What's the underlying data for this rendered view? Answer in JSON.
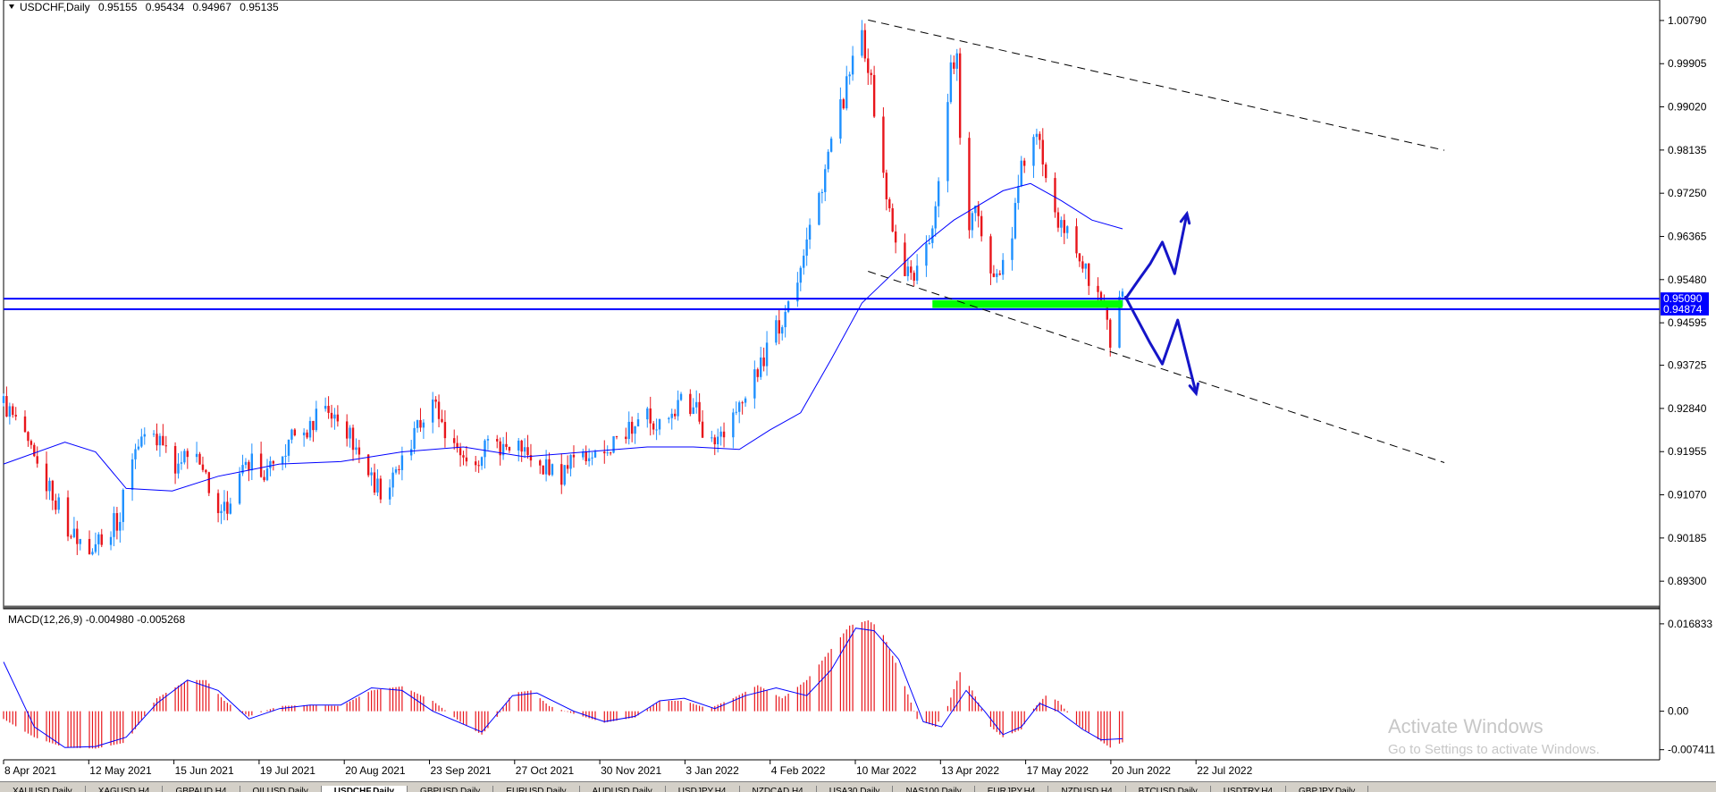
{
  "symbol_header": {
    "label": "USDCHF,Daily",
    "open": "0.95155",
    "high": "0.95434",
    "low": "0.94967",
    "close": "0.95135"
  },
  "price_axis": {
    "ticks": [
      "1.00790",
      "0.99905",
      "0.99020",
      "0.98135",
      "0.97250",
      "0.96365",
      "0.95480",
      "0.94595",
      "0.93725",
      "0.92840",
      "0.91955",
      "0.91070",
      "0.90185",
      "0.89300"
    ],
    "range": [
      0.889,
      1.011
    ],
    "line_labels": [
      "0.95090",
      "0.94874"
    ]
  },
  "macd": {
    "label": "MACD(12,26,9) -0.004980 -0.005268",
    "ticks": [
      "0.016833",
      "0.00",
      "-0.007411"
    ]
  },
  "date_axis": [
    "8 Apr 2021",
    "12 May 2021",
    "15 Jun 2021",
    "19 Jul 2021",
    "20 Aug 2021",
    "23 Sep 2021",
    "27 Oct 2021",
    "30 Nov 2021",
    "3 Jan 2022",
    "4 Feb 2022",
    "10 Mar 2022",
    "13 Apr 2022",
    "17 May 2022",
    "20 Jun 2022",
    "22 Jul 2022"
  ],
  "tabs": [
    "XAUUSD,Daily",
    "XAGUSD,H4",
    "GBPAUD,H4",
    "OILUSD,Daily",
    "USDCHF,Daily",
    "GBPUSD,Daily",
    "EURUSD,Daily",
    "AUDUSD,Daily",
    "USDJPY,H4",
    "NZDCAD,H4",
    "USA30,Daily",
    "NAS100,Daily",
    "EURJPY,H4",
    "NZDUSD,H4",
    "BTCUSD,Daily",
    "USDTRY,H4",
    "GBPJPY,Daily"
  ],
  "active_tab": 4,
  "watermark": {
    "title": "Activate Windows",
    "subtitle": "Go to Settings to activate Windows."
  },
  "colors": {
    "bull": "#1e90ff",
    "bear": "#e8151b",
    "ma_line": "#0000ff",
    "hline": "#0000ff",
    "zone": "#00ff00",
    "macd_hist": "#e8151b",
    "drawing": "#1515c8"
  },
  "chart_data": {
    "type": "candlestick",
    "symbol": "USDCHF",
    "timeframe": "Daily",
    "x_range": [
      "8 Apr 2021",
      "22 Jul 2022"
    ],
    "y_range": [
      0.889,
      1.011
    ],
    "close_path": [
      [
        0,
        0.9295
      ],
      [
        5,
        0.9245
      ],
      [
        10,
        0.9175
      ],
      [
        16,
        0.911
      ],
      [
        22,
        0.9025
      ],
      [
        28,
        0.9005
      ],
      [
        34,
        0.9035
      ],
      [
        38,
        0.906
      ],
      [
        41,
        0.918
      ],
      [
        46,
        0.9225
      ],
      [
        52,
        0.923
      ],
      [
        56,
        0.917
      ],
      [
        62,
        0.919
      ],
      [
        66,
        0.9135
      ],
      [
        69,
        0.904
      ],
      [
        72,
        0.9075
      ],
      [
        76,
        0.9135
      ],
      [
        82,
        0.918
      ],
      [
        86,
        0.915
      ],
      [
        90,
        0.9175
      ],
      [
        94,
        0.922
      ],
      [
        100,
        0.924
      ],
      [
        104,
        0.9305
      ],
      [
        108,
        0.926
      ],
      [
        112,
        0.924
      ],
      [
        116,
        0.919
      ],
      [
        120,
        0.914
      ],
      [
        124,
        0.911
      ],
      [
        128,
        0.9145
      ],
      [
        134,
        0.923
      ],
      [
        140,
        0.93
      ],
      [
        145,
        0.9225
      ],
      [
        150,
        0.919
      ],
      [
        154,
        0.916
      ],
      [
        158,
        0.9225
      ],
      [
        162,
        0.92
      ],
      [
        166,
        0.922
      ],
      [
        170,
        0.9195
      ],
      [
        174,
        0.918
      ],
      [
        178,
        0.9155
      ],
      [
        182,
        0.915
      ],
      [
        186,
        0.9185
      ],
      [
        190,
        0.9175
      ],
      [
        196,
        0.919
      ],
      [
        200,
        0.9225
      ],
      [
        205,
        0.924
      ],
      [
        210,
        0.927
      ],
      [
        214,
        0.925
      ],
      [
        218,
        0.927
      ],
      [
        222,
        0.9305
      ],
      [
        226,
        0.928
      ],
      [
        230,
        0.92
      ],
      [
        236,
        0.9255
      ],
      [
        242,
        0.93
      ],
      [
        248,
        0.939
      ],
      [
        254,
        0.947
      ],
      [
        258,
        0.953
      ],
      [
        262,
        0.964
      ],
      [
        266,
        0.972
      ],
      [
        270,
        0.983
      ],
      [
        274,
        0.992
      ],
      [
        278,
        1.001
      ],
      [
        280,
        1.005
      ],
      [
        282,
        0.999
      ],
      [
        286,
        0.981
      ],
      [
        290,
        0.964
      ],
      [
        294,
        0.957
      ],
      [
        298,
        0.956
      ],
      [
        302,
        0.962
      ],
      [
        306,
        0.98
      ],
      [
        309,
        0.999
      ],
      [
        311,
        1.001
      ],
      [
        313,
        0.965
      ],
      [
        317,
        0.968
      ],
      [
        321,
        0.959
      ],
      [
        325,
        0.956
      ],
      [
        328,
        0.961
      ],
      [
        332,
        0.977
      ],
      [
        335,
        0.984
      ],
      [
        338,
        0.9825
      ],
      [
        341,
        0.974
      ],
      [
        345,
        0.965
      ],
      [
        349,
        0.963
      ],
      [
        353,
        0.956
      ],
      [
        357,
        0.952
      ],
      [
        359,
        0.948
      ],
      [
        361,
        0.942
      ],
      [
        363,
        0.947
      ],
      [
        365,
        0.9513
      ]
    ],
    "moving_average": [
      [
        0,
        0.917
      ],
      [
        20,
        0.9215
      ],
      [
        30,
        0.9195
      ],
      [
        40,
        0.912
      ],
      [
        55,
        0.9115
      ],
      [
        70,
        0.9145
      ],
      [
        90,
        0.917
      ],
      [
        110,
        0.9175
      ],
      [
        130,
        0.9195
      ],
      [
        150,
        0.9205
      ],
      [
        170,
        0.9185
      ],
      [
        190,
        0.9195
      ],
      [
        210,
        0.9205
      ],
      [
        225,
        0.9205
      ],
      [
        240,
        0.92
      ],
      [
        250,
        0.924
      ],
      [
        260,
        0.9275
      ],
      [
        270,
        0.9385
      ],
      [
        280,
        0.95
      ],
      [
        290,
        0.956
      ],
      [
        300,
        0.962
      ],
      [
        310,
        0.967
      ],
      [
        318,
        0.97
      ],
      [
        326,
        0.973
      ],
      [
        335,
        0.9745
      ],
      [
        345,
        0.971
      ],
      [
        355,
        0.967
      ],
      [
        365,
        0.9652
      ]
    ],
    "horizontal_lines": [
      0.9509,
      0.94874
    ],
    "support_zone": {
      "from_day": 303,
      "to_day": 365,
      "y_top": 0.9506,
      "y_bottom": 0.949
    },
    "trendlines": [
      {
        "style": "dashed",
        "p1": [
          282,
          1.008
        ],
        "p2": [
          470,
          0.9813
        ]
      },
      {
        "style": "dashed",
        "p1": [
          282,
          0.9565
        ],
        "p2": [
          470,
          0.9173
        ]
      }
    ],
    "macd": {
      "params": "12,26,9",
      "main": -0.00498,
      "signal": -0.005268,
      "y_range": [
        -0.0085,
        0.0175
      ],
      "hist_path": [
        [
          0,
          -0.0015
        ],
        [
          10,
          -0.005
        ],
        [
          20,
          -0.007
        ],
        [
          30,
          -0.0072
        ],
        [
          40,
          -0.006
        ],
        [
          50,
          0.0025
        ],
        [
          60,
          0.006
        ],
        [
          66,
          0.006
        ],
        [
          72,
          0.002
        ],
        [
          80,
          -0.001
        ],
        [
          90,
          0.001
        ],
        [
          100,
          0.0012
        ],
        [
          110,
          0.001
        ],
        [
          120,
          0.004
        ],
        [
          130,
          0.0048
        ],
        [
          140,
          0.002
        ],
        [
          150,
          -0.0025
        ],
        [
          156,
          -0.0045
        ],
        [
          160,
          -0.002
        ],
        [
          166,
          0.0035
        ],
        [
          172,
          0.004
        ],
        [
          178,
          0.001
        ],
        [
          186,
          -0.0005
        ],
        [
          196,
          -0.0022
        ],
        [
          206,
          -0.0012
        ],
        [
          214,
          0.002
        ],
        [
          222,
          0.002
        ],
        [
          230,
          0.0005
        ],
        [
          238,
          0.0025
        ],
        [
          246,
          0.005
        ],
        [
          254,
          0.0025
        ],
        [
          262,
          0.006
        ],
        [
          270,
          0.012
        ],
        [
          276,
          0.0165
        ],
        [
          282,
          0.0175
        ],
        [
          286,
          0.016
        ],
        [
          292,
          0.008
        ],
        [
          298,
          -0.0015
        ],
        [
          304,
          -0.003
        ],
        [
          308,
          0.001
        ],
        [
          312,
          0.0075
        ],
        [
          316,
          0.004
        ],
        [
          322,
          -0.003
        ],
        [
          326,
          -0.005
        ],
        [
          332,
          -0.0035
        ],
        [
          336,
          0.0005
        ],
        [
          340,
          0.003
        ],
        [
          344,
          0.002
        ],
        [
          350,
          -0.0025
        ],
        [
          356,
          -0.005
        ],
        [
          361,
          -0.007
        ],
        [
          365,
          -0.006
        ]
      ],
      "signal_path": [
        [
          0,
          0.0095
        ],
        [
          10,
          -0.003
        ],
        [
          20,
          -0.007
        ],
        [
          30,
          -0.0068
        ],
        [
          40,
          -0.005
        ],
        [
          50,
          0.0015
        ],
        [
          60,
          0.006
        ],
        [
          70,
          0.004
        ],
        [
          80,
          -0.0015
        ],
        [
          90,
          0.0005
        ],
        [
          100,
          0.0012
        ],
        [
          110,
          0.0012
        ],
        [
          120,
          0.0045
        ],
        [
          130,
          0.004
        ],
        [
          140,
          0.0
        ],
        [
          150,
          -0.0025
        ],
        [
          156,
          -0.004
        ],
        [
          166,
          0.003
        ],
        [
          174,
          0.0035
        ],
        [
          186,
          0.0
        ],
        [
          196,
          -0.002
        ],
        [
          206,
          -0.001
        ],
        [
          214,
          0.002
        ],
        [
          222,
          0.0025
        ],
        [
          232,
          0.0005
        ],
        [
          242,
          0.003
        ],
        [
          252,
          0.0045
        ],
        [
          262,
          0.003
        ],
        [
          270,
          0.008
        ],
        [
          278,
          0.016
        ],
        [
          284,
          0.0155
        ],
        [
          292,
          0.01
        ],
        [
          300,
          -0.002
        ],
        [
          306,
          -0.003
        ],
        [
          314,
          0.004
        ],
        [
          320,
          0.0
        ],
        [
          326,
          -0.0045
        ],
        [
          332,
          -0.003
        ],
        [
          338,
          0.0015
        ],
        [
          344,
          0.0
        ],
        [
          352,
          -0.0035
        ],
        [
          358,
          -0.0055
        ],
        [
          365,
          -0.0053
        ]
      ]
    },
    "annotations": [
      {
        "type": "arrow-up",
        "points": [
          [
            366,
            0.9509
          ],
          [
            370,
            0.9545
          ],
          [
            374,
            0.958
          ],
          [
            378,
            0.9625
          ],
          [
            382,
            0.956
          ],
          [
            386,
            0.9683
          ]
        ]
      },
      {
        "type": "arrow-down",
        "points": [
          [
            366,
            0.9512
          ],
          [
            370,
            0.9465
          ],
          [
            374,
            0.9418
          ],
          [
            378,
            0.9375
          ],
          [
            383,
            0.9465
          ],
          [
            389,
            0.9315
          ]
        ]
      }
    ]
  }
}
